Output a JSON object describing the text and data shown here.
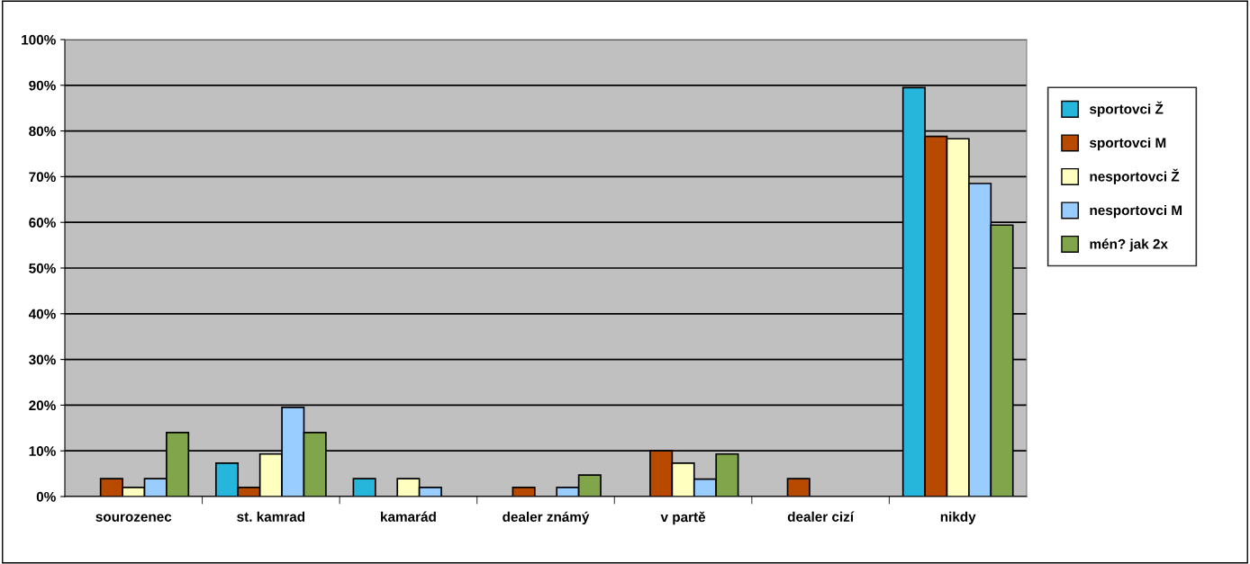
{
  "chart_data": {
    "type": "bar",
    "categories": [
      "sourozenec",
      "st. kamrad",
      "kamarád",
      "dealer známý",
      "v partě",
      "dealer cizí",
      "nikdy"
    ],
    "series": [
      {
        "name": "sportovci Ž",
        "color": "#26b6dc",
        "values": [
          0,
          7.3,
          3.9,
          0,
          0,
          0,
          89.5
        ]
      },
      {
        "name": "sportovci M",
        "color": "#b84a00",
        "values": [
          3.9,
          2,
          0,
          2,
          10,
          3.9,
          78.8
        ]
      },
      {
        "name": "nesportovci Ž",
        "color": "#ffffc0",
        "values": [
          2,
          9.3,
          3.9,
          0,
          7.3,
          0,
          78.3
        ]
      },
      {
        "name": "nesportovci M",
        "color": "#99ccff",
        "values": [
          3.9,
          19.5,
          2,
          2,
          3.8,
          0,
          68.5
        ]
      },
      {
        "name": "mén? jak 2x",
        "color": "#80a54a",
        "values": [
          14,
          14,
          0,
          4.7,
          9.3,
          0,
          59.4
        ]
      }
    ],
    "ylim": [
      0,
      100
    ],
    "yticks": [
      {
        "value": 0,
        "label": "0%"
      },
      {
        "value": 10,
        "label": "10%"
      },
      {
        "value": 20,
        "label": "20%"
      },
      {
        "value": 30,
        "label": "30%"
      },
      {
        "value": 40,
        "label": "40%"
      },
      {
        "value": 50,
        "label": "50%"
      },
      {
        "value": 60,
        "label": "60%"
      },
      {
        "value": 70,
        "label": "70%"
      },
      {
        "value": 80,
        "label": "80%"
      },
      {
        "value": 90,
        "label": "90%"
      },
      {
        "value": 100,
        "label": "100%"
      }
    ],
    "grid": "y",
    "legend": "right"
  }
}
